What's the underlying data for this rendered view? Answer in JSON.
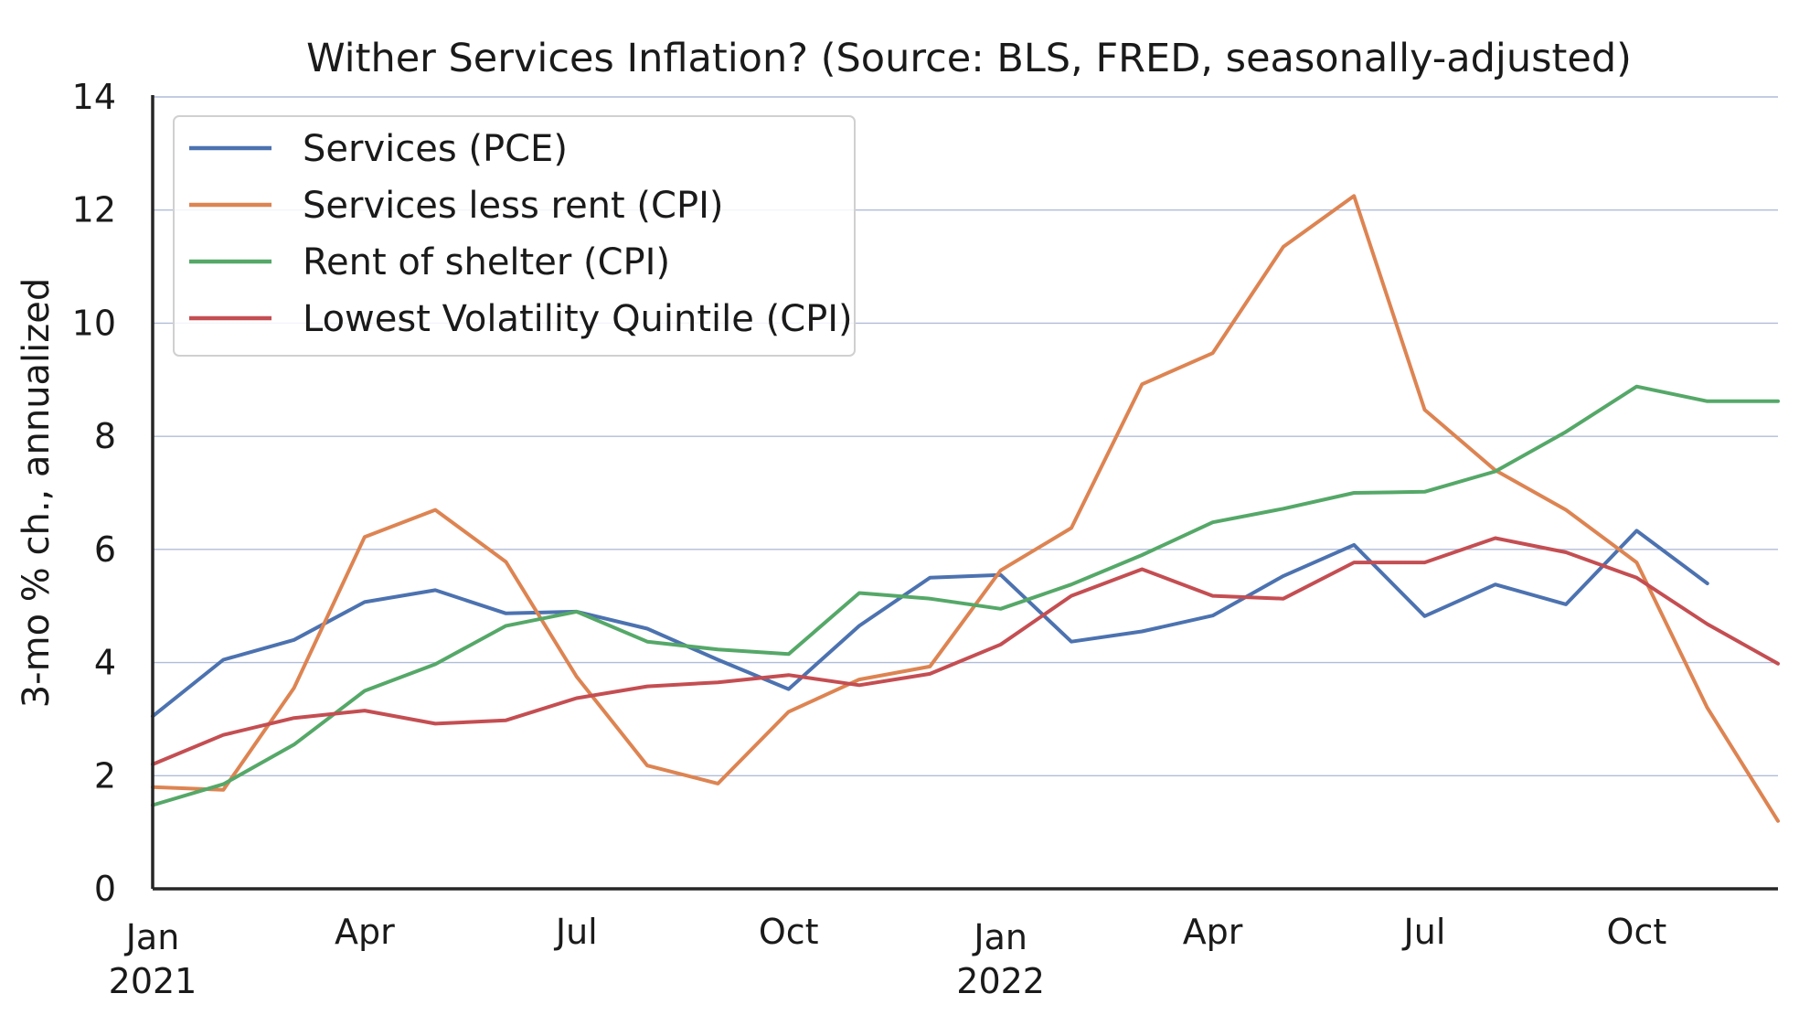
{
  "chart_data": {
    "type": "line",
    "title": "Wither Services Inflation? (Source: BLS, FRED, seasonally-adjusted)",
    "xlabel": "",
    "ylabel": "3-mo % ch., annualized",
    "ylim": [
      0,
      14
    ],
    "yticks": [
      0,
      2,
      4,
      6,
      8,
      10,
      12,
      14
    ],
    "grid": true,
    "legend_position": "top-left",
    "x": [
      "2021-01",
      "2021-02",
      "2021-03",
      "2021-04",
      "2021-05",
      "2021-06",
      "2021-07",
      "2021-08",
      "2021-09",
      "2021-10",
      "2021-11",
      "2021-12",
      "2022-01",
      "2022-02",
      "2022-03",
      "2022-04",
      "2022-05",
      "2022-06",
      "2022-07",
      "2022-08",
      "2022-09",
      "2022-10",
      "2022-11",
      "2022-12"
    ],
    "xticks": [
      {
        "x": "2021-01",
        "label": "Jan",
        "year": "2021"
      },
      {
        "x": "2021-04",
        "label": "Apr",
        "year": ""
      },
      {
        "x": "2021-07",
        "label": "Jul",
        "year": ""
      },
      {
        "x": "2021-10",
        "label": "Oct",
        "year": ""
      },
      {
        "x": "2022-01",
        "label": "Jan",
        "year": "2022"
      },
      {
        "x": "2022-04",
        "label": "Apr",
        "year": ""
      },
      {
        "x": "2022-07",
        "label": "Jul",
        "year": ""
      },
      {
        "x": "2022-10",
        "label": "Oct",
        "year": ""
      }
    ],
    "series": [
      {
        "name": "Services (PCE)",
        "color": "#4c72b0",
        "values": [
          3.05,
          4.05,
          4.4,
          5.07,
          5.28,
          4.87,
          4.9,
          4.6,
          4.05,
          3.53,
          4.65,
          5.5,
          5.55,
          4.37,
          4.55,
          4.83,
          5.53,
          6.08,
          4.82,
          5.38,
          5.03,
          6.33,
          5.4,
          null
        ]
      },
      {
        "name": "Services less rent (CPI)",
        "color": "#dd8452",
        "values": [
          1.8,
          1.75,
          3.55,
          6.22,
          6.7,
          5.78,
          3.75,
          2.18,
          1.86,
          3.13,
          3.7,
          3.93,
          5.63,
          6.38,
          8.92,
          9.47,
          11.35,
          12.25,
          8.47,
          7.4,
          6.7,
          5.77,
          3.2,
          1.2
        ]
      },
      {
        "name": "Rent of shelter (CPI)",
        "color": "#55a868",
        "values": [
          1.48,
          1.85,
          2.55,
          3.5,
          3.97,
          4.65,
          4.9,
          4.37,
          4.23,
          4.15,
          5.23,
          5.13,
          4.95,
          5.38,
          5.9,
          6.48,
          6.72,
          7.0,
          7.02,
          7.38,
          8.08,
          8.88,
          8.62,
          8.62
        ]
      },
      {
        "name": "Lowest Volatility Quintile (CPI)",
        "color": "#c44e52",
        "values": [
          2.2,
          2.72,
          3.02,
          3.15,
          2.92,
          2.98,
          3.37,
          3.58,
          3.65,
          3.78,
          3.6,
          3.8,
          4.32,
          5.18,
          5.65,
          5.18,
          5.13,
          5.77,
          5.77,
          6.2,
          5.95,
          5.5,
          4.68,
          3.98
        ]
      }
    ]
  }
}
